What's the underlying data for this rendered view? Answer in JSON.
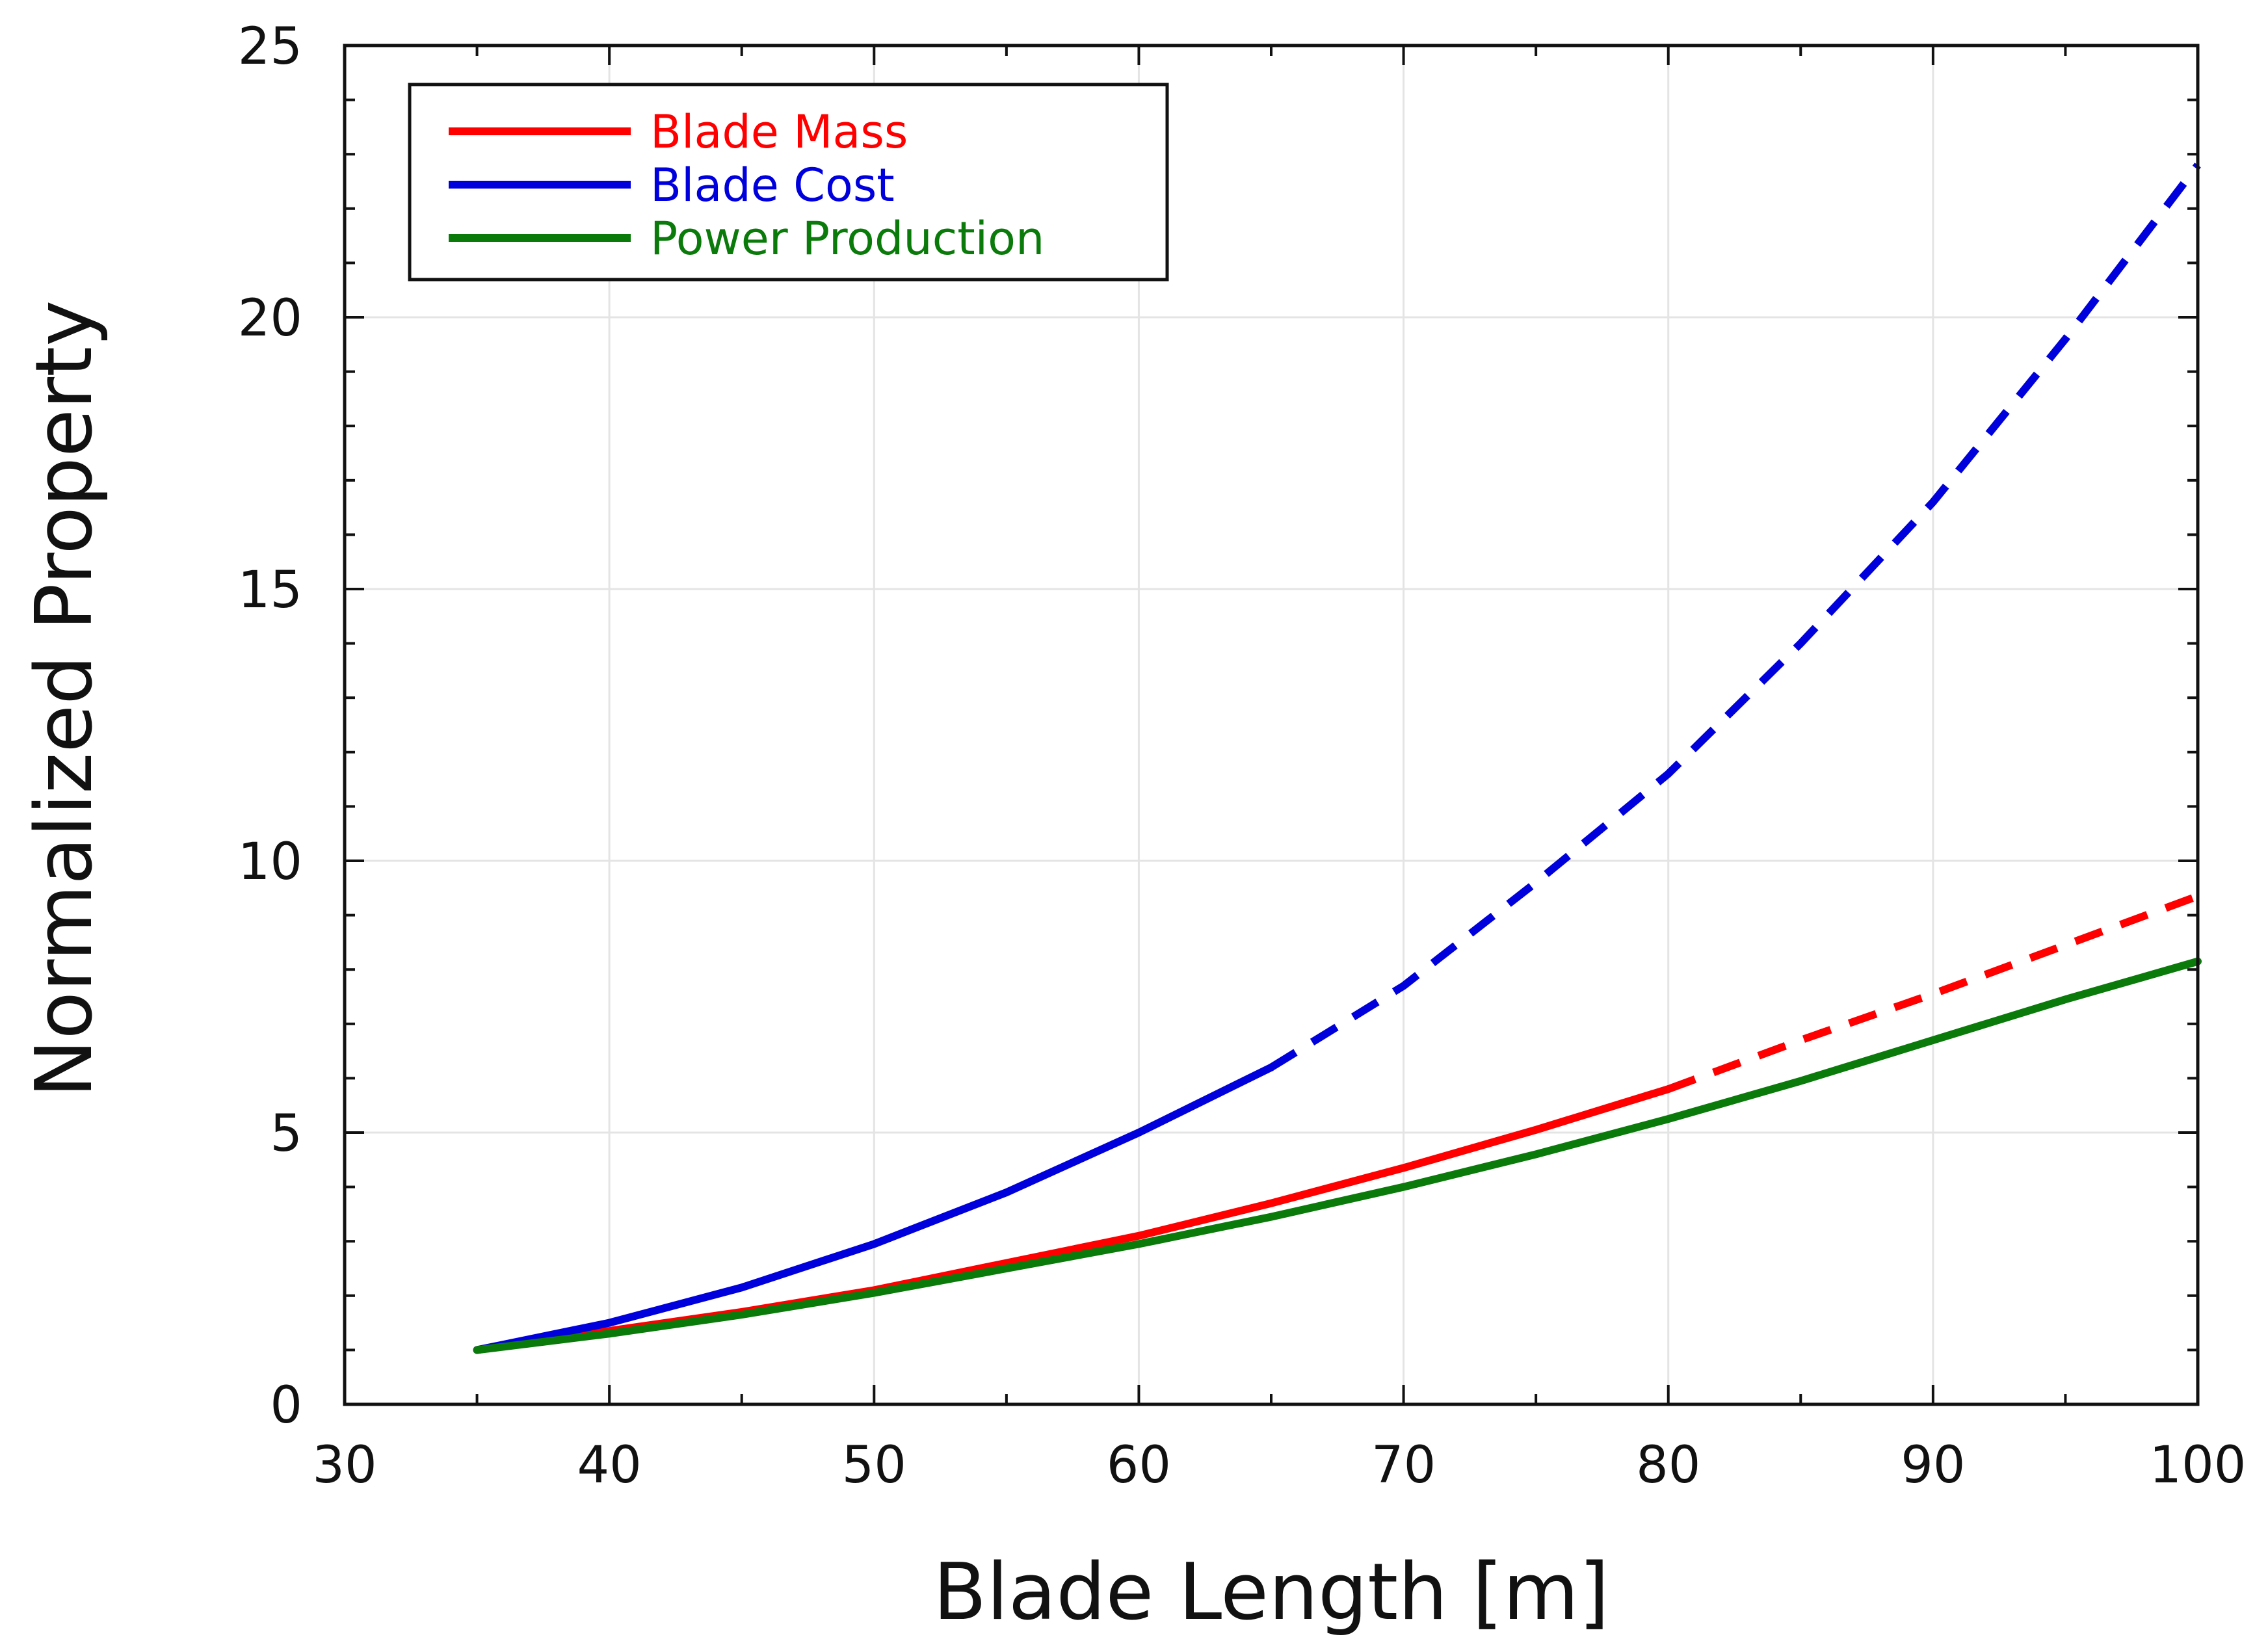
{
  "chart_data": {
    "type": "line",
    "xlabel": "Blade Length [m]",
    "ylabel": "Normalized Property",
    "xlim": [
      30,
      100
    ],
    "ylim": [
      0,
      25
    ],
    "xticks": [
      30,
      40,
      50,
      60,
      70,
      80,
      90,
      100
    ],
    "yticks": [
      0,
      5,
      10,
      15,
      20,
      25
    ],
    "xtick_labels": [
      "30",
      "40",
      "50",
      "60",
      "70",
      "80",
      "90",
      "100"
    ],
    "ytick_labels": [
      "0",
      "5",
      "10",
      "15",
      "20",
      "25"
    ],
    "grid": true,
    "legend_position": "top-left",
    "series": [
      {
        "name": "Blade Mass",
        "color": "#ff0000",
        "x": [
          35,
          40,
          45,
          50,
          55,
          60,
          65,
          70,
          75,
          80,
          85,
          90,
          95,
          100
        ],
        "y": [
          1.0,
          1.35,
          1.7,
          2.1,
          2.6,
          3.1,
          3.7,
          4.35,
          5.05,
          5.8,
          6.7,
          7.55,
          8.45,
          9.35
        ],
        "solid_until_x": 80
      },
      {
        "name": "Blade Cost",
        "color": "#0000dd",
        "x": [
          35,
          40,
          45,
          50,
          55,
          60,
          65,
          70,
          75,
          80,
          85,
          90,
          95,
          100
        ],
        "y": [
          1.0,
          1.5,
          2.15,
          2.95,
          3.9,
          5.0,
          6.2,
          7.7,
          9.6,
          11.6,
          14.0,
          16.6,
          19.6,
          22.8
        ],
        "solid_until_x": 65
      },
      {
        "name": "Power Production",
        "color": "#0a7a0a",
        "x": [
          35,
          40,
          45,
          50,
          55,
          60,
          65,
          70,
          75,
          80,
          85,
          90,
          95,
          100
        ],
        "y": [
          1.0,
          1.3,
          1.65,
          2.05,
          2.5,
          2.95,
          3.45,
          4.0,
          4.6,
          5.25,
          5.95,
          6.7,
          7.45,
          8.15
        ]
      }
    ]
  }
}
